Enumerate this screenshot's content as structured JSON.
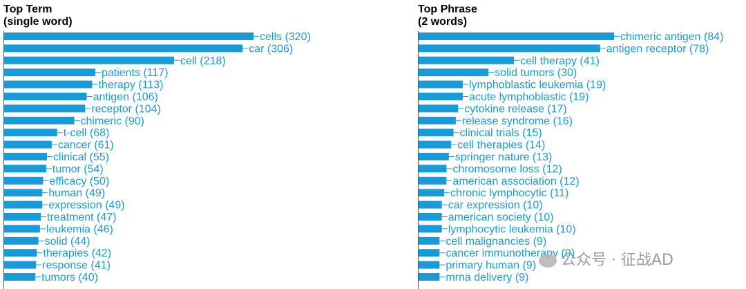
{
  "chart_data": [
    {
      "type": "bar",
      "orientation": "horizontal",
      "title_line1": "Top Term",
      "title_line2": "(single word)",
      "categories": [
        "cells",
        "car",
        "cell",
        "patients",
        "therapy",
        "antigen",
        "receptor",
        "chimeric",
        "t-cell",
        "cancer",
        "clinical",
        "tumor",
        "efficacy",
        "human",
        "expression",
        "treatment",
        "leukemia",
        "solid",
        "therapies",
        "response",
        "tumors"
      ],
      "values": [
        320,
        306,
        218,
        117,
        113,
        106,
        104,
        90,
        68,
        61,
        55,
        54,
        50,
        49,
        49,
        47,
        46,
        44,
        42,
        41,
        40
      ],
      "bar_color": "#1a9bd7"
    },
    {
      "type": "bar",
      "orientation": "horizontal",
      "title_line1": "Top Phrase",
      "title_line2": "(2 words)",
      "categories": [
        "chimeric antigen",
        "antigen receptor",
        "cell therapy",
        "solid tumors",
        "lymphoblastic leukemia",
        "acute lymphoblastic",
        "cytokine release",
        "release syndrome",
        "clinical trials",
        "cell therapies",
        "springer nature",
        "chromosome loss",
        "american association",
        "chronic lymphocytic",
        "car expression",
        "american society",
        "lymphocytic leukemia",
        "cell malignancies",
        "cancer immunotherapy",
        "primary human",
        "mrna delivery"
      ],
      "values": [
        84,
        78,
        41,
        30,
        19,
        19,
        17,
        16,
        15,
        14,
        13,
        12,
        12,
        11,
        10,
        10,
        10,
        9,
        9,
        9,
        9
      ],
      "bar_color": "#1a9bd7"
    }
  ],
  "watermark": {
    "text": "公众号 · 征战AD",
    "icon": "wechat-icon"
  }
}
